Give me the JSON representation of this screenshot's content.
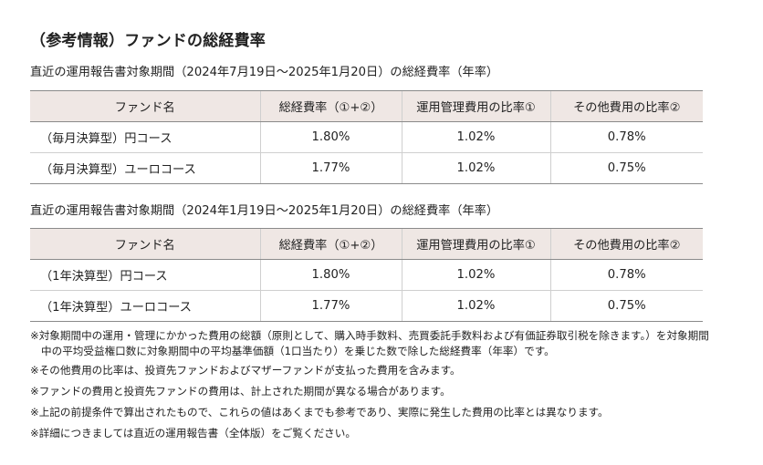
{
  "title": "（参考情報）ファンドの総経費率",
  "tables": [
    {
      "caption": "直近の運用報告書対象期間（2024年7月19日〜2025年1月20日）の総経費率（年率）",
      "headers": [
        "ファンド名",
        "総経費率（①+②）",
        "運用管理費用の比率①",
        "その他費用の比率②"
      ],
      "rows": [
        [
          "（毎月決算型）円コース",
          "1.80%",
          "1.02%",
          "0.78%"
        ],
        [
          "（毎月決算型）ユーロコース",
          "1.77%",
          "1.02%",
          "0.75%"
        ]
      ]
    },
    {
      "caption": "直近の運用報告書対象期間（2024年1月19日〜2025年1月20日）の総経費率（年率）",
      "headers": [
        "ファンド名",
        "総経費率（①+②）",
        "運用管理費用の比率①",
        "その他費用の比率②"
      ],
      "rows": [
        [
          "（1年決算型）円コース",
          "1.80%",
          "1.02%",
          "0.78%"
        ],
        [
          "（1年決算型）ユーロコース",
          "1.77%",
          "1.02%",
          "0.75%"
        ]
      ]
    }
  ],
  "notes": [
    "※対象期間中の運用・管理にかかった費用の総額（原則として、購入時手数料、売買委託手数料および有価証券取引税を除きます。）を対象期間中の平均受益権口数に対象期間中の平均基準価額（1口当たり）を乗じた数で除した総経費率（年率）です。",
    "※その他費用の比率は、投資先ファンドおよびマザーファンドが支払った費用を含みます。",
    "※ファンドの費用と投資先ファンドの費用は、計上された期間が異なる場合があります。",
    "※上記の前提条件で算出されたもので、これらの値はあくまでも参考であり、実際に発生した費用の比率とは異なります。",
    "※詳細につきましては直近の運用報告書（全体版）をご覧ください。"
  ]
}
